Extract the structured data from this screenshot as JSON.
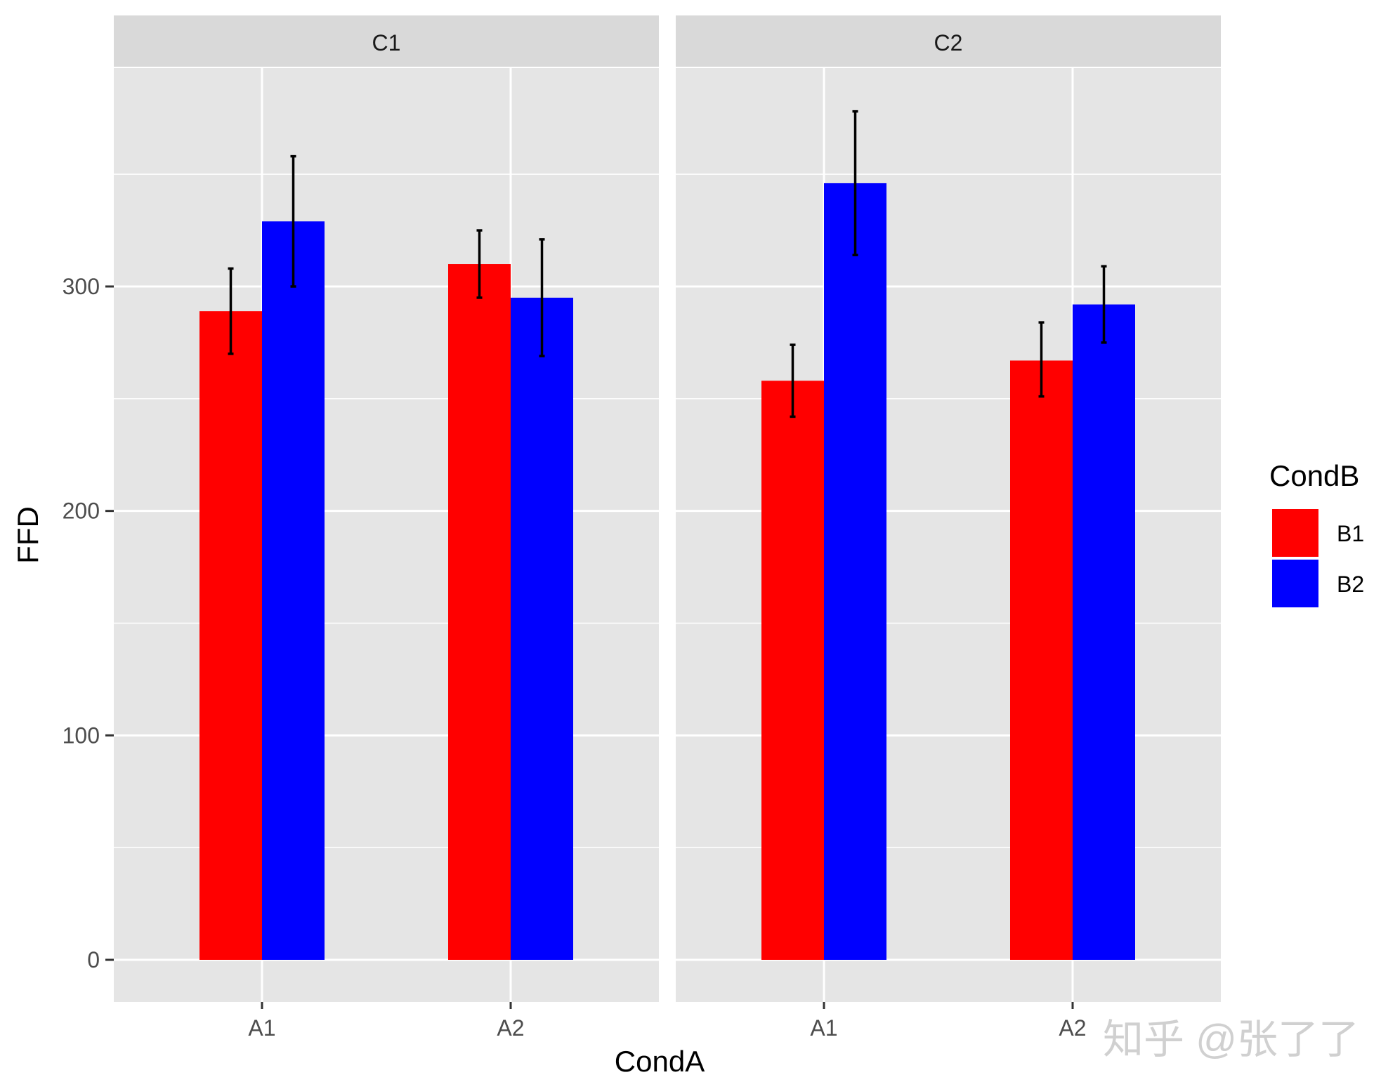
{
  "chart_data": {
    "type": "bar",
    "facets": [
      {
        "strip_label": "C1",
        "categories": [
          "A1",
          "A2"
        ],
        "series": [
          {
            "name": "B1",
            "values": [
              289,
              310
            ],
            "error_low": [
              270,
              295
            ],
            "error_high": [
              308,
              325
            ]
          },
          {
            "name": "B2",
            "values": [
              329,
              295
            ],
            "error_low": [
              300,
              269
            ],
            "error_high": [
              358,
              321
            ]
          }
        ]
      },
      {
        "strip_label": "C2",
        "categories": [
          "A1",
          "A2"
        ],
        "series": [
          {
            "name": "B1",
            "values": [
              258,
              267
            ],
            "error_low": [
              242,
              251
            ],
            "error_high": [
              274,
              284
            ]
          },
          {
            "name": "B2",
            "values": [
              346,
              292
            ],
            "error_low": [
              314,
              275
            ],
            "error_high": [
              378,
              309
            ]
          }
        ]
      }
    ],
    "xlabel": "CondA",
    "ylabel": "FFD",
    "ylim": [
      0,
      400
    ],
    "yticks": [
      0,
      100,
      200,
      300
    ],
    "grid": true,
    "legend": {
      "title": "CondB",
      "position": "right",
      "items": [
        {
          "label": "B1",
          "color": "#ff0000"
        },
        {
          "label": "B2",
          "color": "#0000ff"
        }
      ]
    },
    "colors": {
      "B1": "#ff0000",
      "B2": "#0000ff"
    }
  },
  "watermark": "知乎 @张了了",
  "colors": {
    "panel_background": "#e5e5e5",
    "strip_background": "#d9d9d9",
    "gridline": "#ffffff",
    "error_bar": "#000000"
  }
}
